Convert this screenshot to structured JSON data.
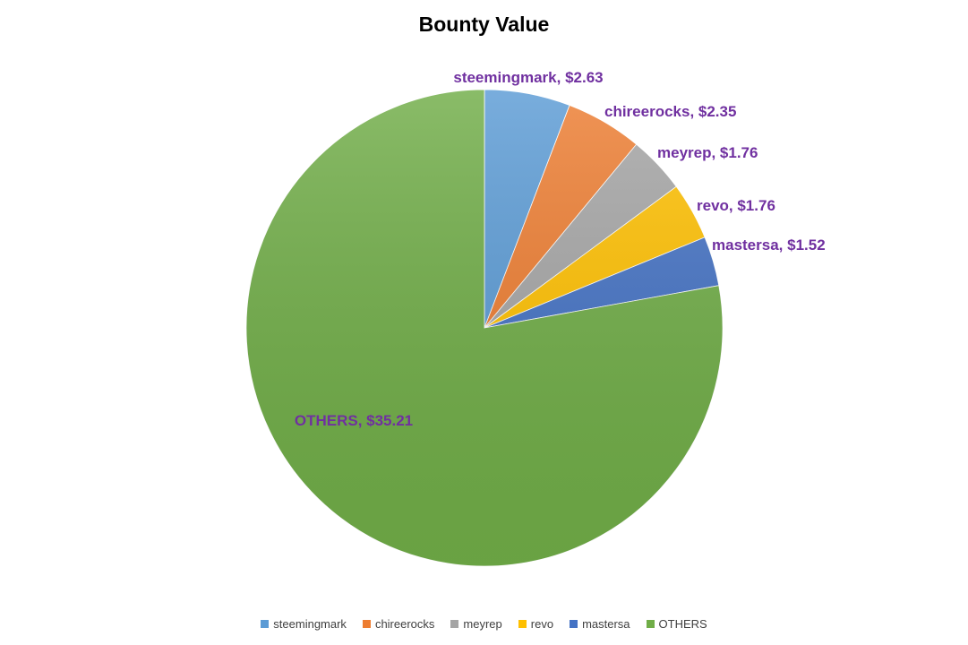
{
  "chart_data": {
    "type": "pie",
    "title": "Bounty Value",
    "legend_position": "bottom",
    "slices": [
      {
        "name": "steemingmark",
        "value": 2.63,
        "label": "steemingmark, $2.63",
        "color": "#5b9bd5"
      },
      {
        "name": "chireerocks",
        "value": 2.35,
        "label": "chireerocks, $2.35",
        "color": "#ed7d31"
      },
      {
        "name": "meyrep",
        "value": 1.76,
        "label": "meyrep, $1.76",
        "color": "#a5a5a5"
      },
      {
        "name": "revo",
        "value": 1.76,
        "label": "revo, $1.76",
        "color": "#ffc000"
      },
      {
        "name": "mastersa",
        "value": 1.52,
        "label": "mastersa, $1.52",
        "color": "#4472c4"
      },
      {
        "name": "OTHERS",
        "value": 35.21,
        "label": "OTHERS, $35.21",
        "color": "#70ad47"
      }
    ],
    "label_color": "#7030a0"
  }
}
